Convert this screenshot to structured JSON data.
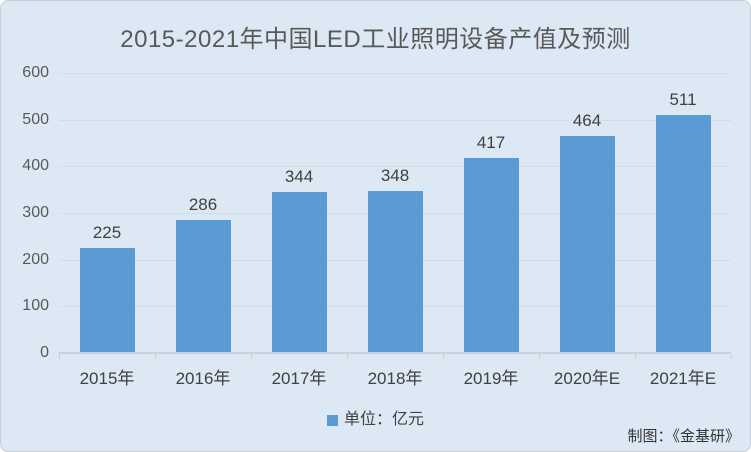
{
  "header": {
    "title": "2015-2021年中国LED工业照明设备产值及预测"
  },
  "chart_data": {
    "type": "bar",
    "title": "2015-2021年中国LED工业照明设备产值及预测",
    "categories": [
      "2015年",
      "2016年",
      "2017年",
      "2018年",
      "2019年",
      "2020年E",
      "2021年E"
    ],
    "values": [
      225,
      286,
      344,
      348,
      417,
      464,
      511
    ],
    "xlabel": "",
    "ylabel": "",
    "ylim": [
      0,
      600
    ],
    "ytick_step": 100,
    "yticks": [
      600,
      500,
      400,
      300,
      200,
      100,
      0
    ],
    "grid": true,
    "data_labels": true,
    "legend_position": "bottom"
  },
  "legend": {
    "label": "单位：亿元",
    "marker": "blue-square"
  },
  "credit": {
    "text": "制图：《金基研》"
  },
  "colors": {
    "bar": "#5b9bd5",
    "background": "#dce9f5",
    "gridline": "#d7dbe0",
    "axis_line": "#cdd1d7",
    "title_text": "#595959",
    "label_text": "#404040",
    "border": "#c9ced6"
  }
}
